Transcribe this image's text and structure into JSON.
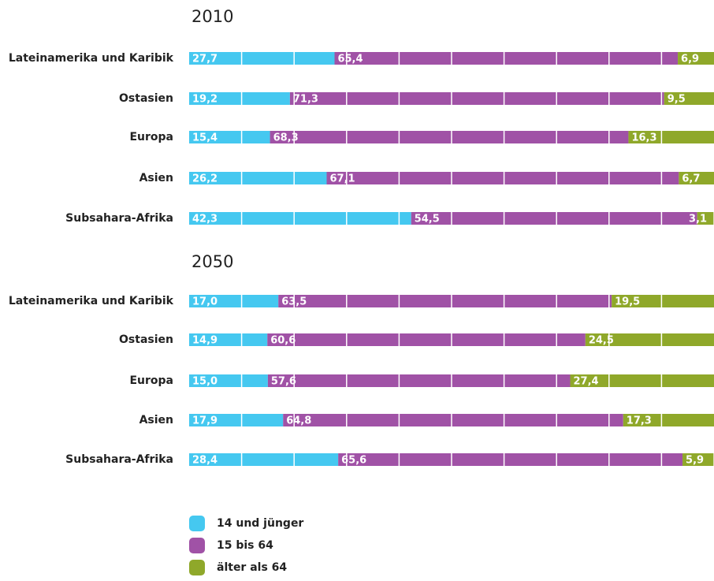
{
  "chart_data": [
    {
      "type": "stacked-bar-horizontal",
      "title": "2010",
      "categories": [
        "Lateinamerika und Karibik",
        "Ostasien",
        "Europa",
        "Asien",
        "Subsahara-Afrika"
      ],
      "series": [
        {
          "name": "14 und jünger",
          "color": "#45c8f0",
          "values": [
            27.7,
            19.2,
            15.4,
            26.2,
            42.3
          ],
          "value_labels": [
            "27,7",
            "19,2",
            "15,4",
            "26,2",
            "42,3"
          ]
        },
        {
          "name": "15 bis 64",
          "color": "#a052a6",
          "values": [
            65.4,
            71.3,
            68.3,
            67.1,
            54.5
          ],
          "value_labels": [
            "65,4",
            "71,3",
            "68,3",
            "67,1",
            "54,5"
          ]
        },
        {
          "name": "älter als 64",
          "color": "#8fa82a",
          "values": [
            6.9,
            9.5,
            16.3,
            6.7,
            3.1
          ],
          "value_labels": [
            "6,9",
            "9,5",
            "16,3",
            "6,7",
            "3,1"
          ]
        }
      ],
      "xlim": [
        0,
        100
      ],
      "xticks": [
        10,
        20,
        30,
        40,
        50,
        60,
        70,
        80,
        90
      ]
    },
    {
      "type": "stacked-bar-horizontal",
      "title": "2050",
      "categories": [
        "Lateinamerika und Karibik",
        "Ostasien",
        "Europa",
        "Asien",
        "Subsahara-Afrika"
      ],
      "series": [
        {
          "name": "14 und jünger",
          "color": "#45c8f0",
          "values": [
            17.0,
            14.9,
            15.0,
            17.9,
            28.4
          ],
          "value_labels": [
            "17,0",
            "14,9",
            "15,0",
            "17,9",
            "28,4"
          ]
        },
        {
          "name": "15 bis 64",
          "color": "#a052a6",
          "values": [
            63.5,
            60.6,
            57.6,
            64.8,
            65.6
          ],
          "value_labels": [
            "63,5",
            "60,6",
            "57,6",
            "64,8",
            "65,6"
          ]
        },
        {
          "name": "älter als 64",
          "color": "#8fa82a",
          "values": [
            19.5,
            24.5,
            27.4,
            17.3,
            5.9
          ],
          "value_labels": [
            "19,5",
            "24,5",
            "27,4",
            "17,3",
            "5,9"
          ]
        }
      ],
      "xlim": [
        0,
        100
      ],
      "xticks": [
        10,
        20,
        30,
        40,
        50,
        60,
        70,
        80,
        90
      ]
    }
  ]
}
